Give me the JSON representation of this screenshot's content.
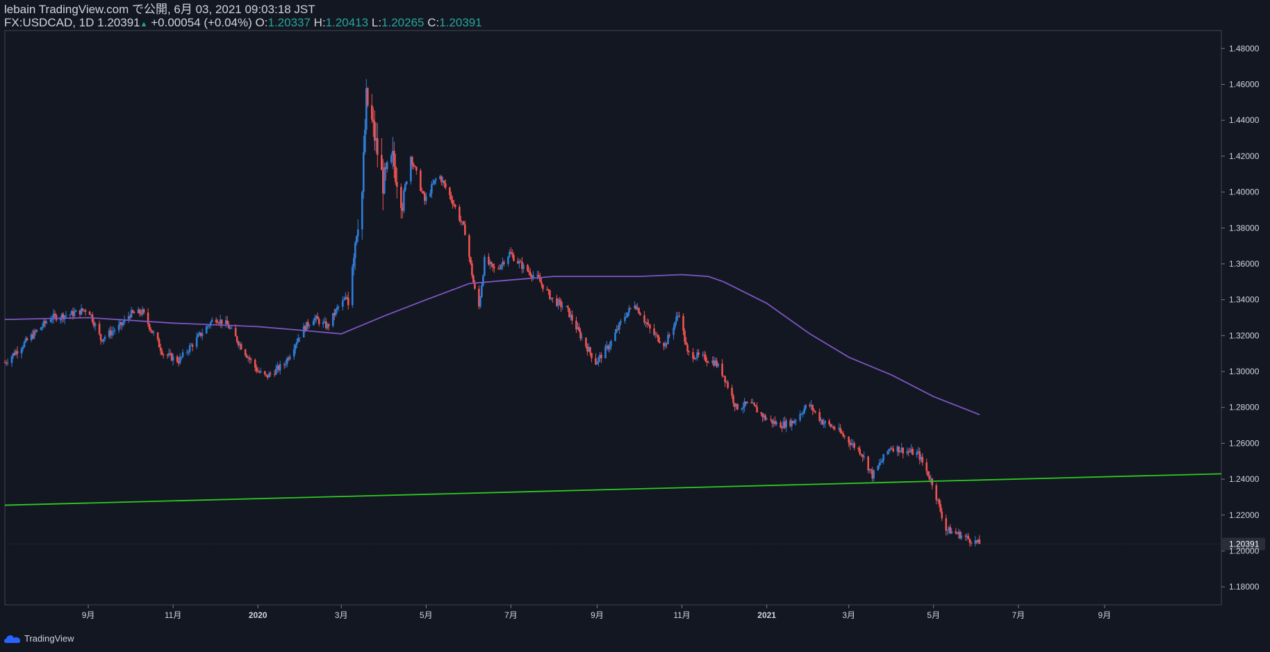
{
  "header": {
    "published": "lebain TradingView.com で公開, 6月 03, 2021 09:03:18 JST",
    "symbol": "FX:USDCAD, 1D",
    "last": "1.20391",
    "change": "+0.00054 (+0.04%)",
    "o_label": "O:",
    "o": "1.20337",
    "h_label": "H:",
    "h": "1.20413",
    "l_label": "L:",
    "l": "1.20265",
    "c_label": "C:",
    "c": "1.20391"
  },
  "footer": {
    "brand": "TradingView"
  },
  "colors": {
    "background": "#131722",
    "up": "#2f7ed8",
    "down": "#ef5350",
    "ma": "#7e57c2",
    "trendline": "#2ecc1f",
    "text": "#d1d4dc",
    "accent": "#26a69a"
  },
  "chart_data": {
    "type": "candlestick",
    "ylim": [
      1.17,
      1.49
    ],
    "yticks": [
      "1.48000",
      "1.46000",
      "1.44000",
      "1.42000",
      "1.40000",
      "1.38000",
      "1.36000",
      "1.34000",
      "1.32000",
      "1.30000",
      "1.28000",
      "1.26000",
      "1.24000",
      "1.22000",
      "1.20000",
      "1.18000"
    ],
    "ytick_values": [
      1.48,
      1.46,
      1.44,
      1.42,
      1.4,
      1.38,
      1.36,
      1.34,
      1.32,
      1.3,
      1.28,
      1.26,
      1.24,
      1.22,
      1.2,
      1.18
    ],
    "last_price_label": "1.20391",
    "last_price": 1.20391,
    "xlim": [
      "2019-07-03",
      "2021-11-24"
    ],
    "xticks": [
      {
        "date": "2019-09-01",
        "label": "9月"
      },
      {
        "date": "2019-11-01",
        "label": "11月"
      },
      {
        "date": "2020-01-01",
        "label": "2020"
      },
      {
        "date": "2020-03-01",
        "label": "3月"
      },
      {
        "date": "2020-05-01",
        "label": "5月"
      },
      {
        "date": "2020-07-01",
        "label": "7月"
      },
      {
        "date": "2020-09-01",
        "label": "9月"
      },
      {
        "date": "2020-11-01",
        "label": "11月"
      },
      {
        "date": "2021-01-01",
        "label": "2021"
      },
      {
        "date": "2021-03-01",
        "label": "3月"
      },
      {
        "date": "2021-05-01",
        "label": "5月"
      },
      {
        "date": "2021-07-01",
        "label": "7月"
      },
      {
        "date": "2021-09-01",
        "label": "9月"
      }
    ],
    "price_path": [
      [
        "2019-07-03",
        1.305
      ],
      [
        "2019-07-20",
        1.318
      ],
      [
        "2019-08-05",
        1.33
      ],
      [
        "2019-08-20",
        1.332
      ],
      [
        "2019-09-01",
        1.335
      ],
      [
        "2019-09-10",
        1.318
      ],
      [
        "2019-09-25",
        1.326
      ],
      [
        "2019-10-01",
        1.332
      ],
      [
        "2019-10-10",
        1.333
      ],
      [
        "2019-10-25",
        1.31
      ],
      [
        "2019-11-05",
        1.306
      ],
      [
        "2019-11-20",
        1.32
      ],
      [
        "2019-12-01",
        1.33
      ],
      [
        "2019-12-10",
        1.326
      ],
      [
        "2019-12-20",
        1.314
      ],
      [
        "2020-01-01",
        1.3
      ],
      [
        "2020-01-07",
        1.297
      ],
      [
        "2020-01-20",
        1.304
      ],
      [
        "2020-02-01",
        1.322
      ],
      [
        "2020-02-10",
        1.33
      ],
      [
        "2020-02-20",
        1.325
      ],
      [
        "2020-02-27",
        1.335
      ],
      [
        "2020-03-06",
        1.342
      ],
      [
        "2020-03-09",
        1.362
      ],
      [
        "2020-03-12",
        1.38
      ],
      [
        "2020-03-16",
        1.4
      ],
      [
        "2020-03-19",
        1.452
      ],
      [
        "2020-03-24",
        1.435
      ],
      [
        "2020-03-31",
        1.405
      ],
      [
        "2020-04-07",
        1.418
      ],
      [
        "2020-04-14",
        1.395
      ],
      [
        "2020-04-20",
        1.42
      ],
      [
        "2020-04-30",
        1.395
      ],
      [
        "2020-05-10",
        1.41
      ],
      [
        "2020-05-20",
        1.395
      ],
      [
        "2020-05-29",
        1.378
      ],
      [
        "2020-06-05",
        1.345
      ],
      [
        "2020-06-08",
        1.336
      ],
      [
        "2020-06-12",
        1.362
      ],
      [
        "2020-06-20",
        1.356
      ],
      [
        "2020-06-30",
        1.366
      ],
      [
        "2020-07-10",
        1.358
      ],
      [
        "2020-07-20",
        1.352
      ],
      [
        "2020-07-31",
        1.34
      ],
      [
        "2020-08-10",
        1.335
      ],
      [
        "2020-08-20",
        1.32
      ],
      [
        "2020-08-31",
        1.305
      ],
      [
        "2020-09-10",
        1.315
      ],
      [
        "2020-09-20",
        1.33
      ],
      [
        "2020-09-28",
        1.338
      ],
      [
        "2020-10-10",
        1.322
      ],
      [
        "2020-10-20",
        1.315
      ],
      [
        "2020-10-30",
        1.333
      ],
      [
        "2020-11-05",
        1.31
      ],
      [
        "2020-11-15",
        1.308
      ],
      [
        "2020-11-25",
        1.305
      ],
      [
        "2020-12-01",
        1.298
      ],
      [
        "2020-12-10",
        1.28
      ],
      [
        "2020-12-20",
        1.282
      ],
      [
        "2020-12-31",
        1.274
      ],
      [
        "2021-01-10",
        1.27
      ],
      [
        "2021-01-20",
        1.272
      ],
      [
        "2021-01-31",
        1.282
      ],
      [
        "2021-02-10",
        1.272
      ],
      [
        "2021-02-20",
        1.268
      ],
      [
        "2021-02-28",
        1.262
      ],
      [
        "2021-03-10",
        1.255
      ],
      [
        "2021-03-18",
        1.242
      ],
      [
        "2021-03-31",
        1.258
      ],
      [
        "2021-04-10",
        1.256
      ],
      [
        "2021-04-20",
        1.254
      ],
      [
        "2021-04-30",
        1.238
      ],
      [
        "2021-05-10",
        1.212
      ],
      [
        "2021-05-20",
        1.209
      ],
      [
        "2021-06-03",
        1.20391
      ]
    ],
    "ma": {
      "name": "",
      "points": [
        [
          "2019-07-03",
          1.329
        ],
        [
          "2019-09-01",
          1.33
        ],
        [
          "2019-11-01",
          1.327
        ],
        [
          "2020-01-01",
          1.325
        ],
        [
          "2020-02-01",
          1.323
        ],
        [
          "2020-03-01",
          1.321
        ],
        [
          "2020-04-01",
          1.331
        ],
        [
          "2020-05-01",
          1.34
        ],
        [
          "2020-06-01",
          1.349
        ],
        [
          "2020-07-01",
          1.351
        ],
        [
          "2020-08-01",
          1.353
        ],
        [
          "2020-09-01",
          1.353
        ],
        [
          "2020-10-01",
          1.353
        ],
        [
          "2020-11-01",
          1.354
        ],
        [
          "2020-11-20",
          1.353
        ],
        [
          "2020-12-01",
          1.35
        ],
        [
          "2021-01-01",
          1.338
        ],
        [
          "2021-02-01",
          1.321
        ],
        [
          "2021-03-01",
          1.308
        ],
        [
          "2021-04-01",
          1.298
        ],
        [
          "2021-05-01",
          1.286
        ],
        [
          "2021-06-03",
          1.276
        ]
      ]
    },
    "trendline": {
      "name": "",
      "points": [
        [
          "2019-07-03",
          1.2255
        ],
        [
          "2021-11-24",
          1.243
        ]
      ]
    }
  }
}
